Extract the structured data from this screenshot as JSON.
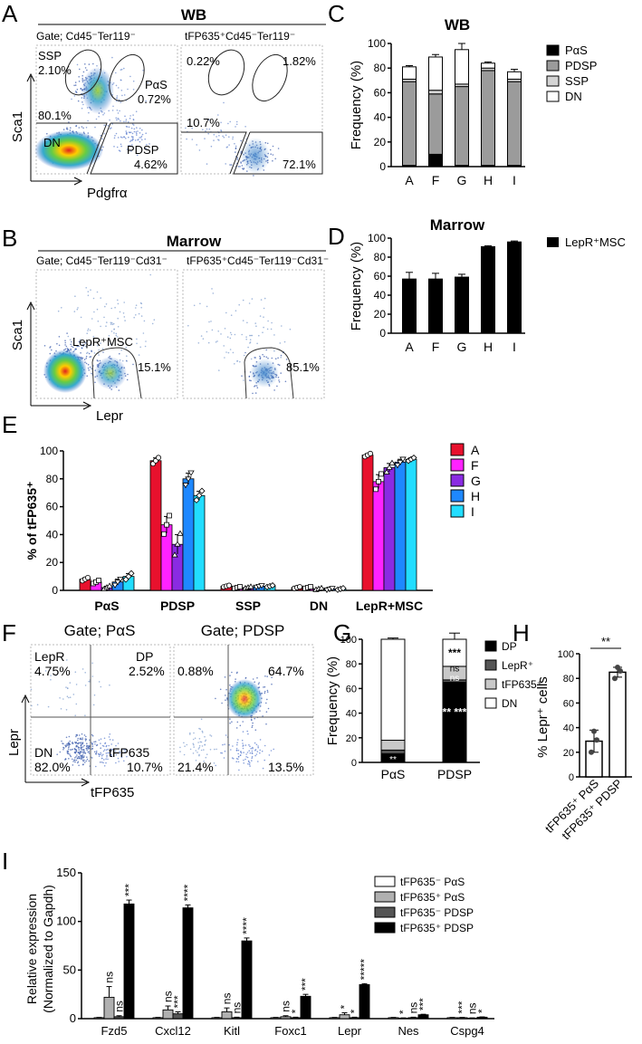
{
  "panel_letters": [
    "A",
    "B",
    "C",
    "D",
    "E",
    "F",
    "G",
    "H",
    "I"
  ],
  "panelA": {
    "title": "WB",
    "gate_left": "Gate; Cd45⁻Ter119⁻",
    "gate_right": "tFP635⁺Cd45⁻Ter119⁻",
    "x_axis": "Pdgfrα",
    "y_axis": "Sca1",
    "left": {
      "ssp_label": "SSP",
      "ssp_pct": "2.10%",
      "pas_label": "PαS",
      "pas_pct": "0.72%",
      "dn_pct": "80.1%",
      "dn_label": "DN",
      "pdsp_label": "PDSP",
      "pdsp_pct": "4.62%"
    },
    "right": {
      "ssp_pct": "0.22%",
      "pas_pct": "1.82%",
      "dn_pct": "10.7%",
      "pdsp_pct": "72.1%"
    }
  },
  "panelB": {
    "title": "Marrow",
    "gate_left": "Gate; Cd45⁻Ter119⁻Cd31⁻",
    "gate_right": "tFP635⁺Cd45⁻Ter119⁻Cd31⁻",
    "x_axis": "Lepr",
    "y_axis": "Sca1",
    "gate_label": "LepR⁺MSC",
    "left_pct": "15.1%",
    "right_pct": "85.1%"
  },
  "panelF": {
    "gate_left": "Gate; PαS",
    "gate_right": "Gate; PDSP",
    "x_axis": "tFP635",
    "y_axis": "Lepr",
    "left": {
      "lepr_label": "LepR",
      "lepr_pct": "4.75%",
      "dp_label": "DP",
      "dp_pct": "2.52%",
      "dn_label": "DN",
      "dn_pct": "82.0%",
      "tfp_label": "tFP635",
      "tfp_pct": "10.7%"
    },
    "right": {
      "lepr_pct": "0.88%",
      "dp_pct": "64.7%",
      "dn_pct": "21.4%",
      "tfp_pct": "13.5%"
    }
  },
  "chart_data": [
    {
      "id": "C",
      "type": "bar",
      "stacked": true,
      "title": "WB",
      "ylabel": "Frequency (%)",
      "ylim": [
        0,
        100
      ],
      "yticks": [
        0,
        20,
        40,
        60,
        80,
        100
      ],
      "categories": [
        "A",
        "F",
        "G",
        "H",
        "I"
      ],
      "series": [
        {
          "name": "PαS",
          "color": "#000000",
          "values": [
            1,
            10,
            1,
            1,
            1
          ],
          "err": [
            0.5,
            1.5,
            0.5,
            0.5,
            0.5
          ]
        },
        {
          "name": "PDSP",
          "color": "#9b9b9b",
          "values": [
            68,
            49,
            64,
            77,
            68
          ],
          "err": [
            1,
            2,
            3,
            1,
            1
          ]
        },
        {
          "name": "SSP",
          "color": "#d4d4d4",
          "values": [
            2,
            3,
            2,
            2,
            2
          ],
          "err": [
            0.5,
            1,
            0.5,
            0.5,
            0.5
          ]
        },
        {
          "name": "DN",
          "color": "#ffffff",
          "values": [
            10,
            27,
            28,
            4,
            6
          ],
          "err": [
            1,
            2,
            5,
            1,
            2
          ]
        }
      ]
    },
    {
      "id": "D",
      "type": "bar",
      "title": "Marrow",
      "ylabel": "Frequency (%)",
      "ylim": [
        0,
        100
      ],
      "yticks": [
        0,
        20,
        40,
        60,
        80,
        100
      ],
      "categories": [
        "A",
        "F",
        "G",
        "H",
        "I"
      ],
      "series": [
        {
          "name": "LepR⁺MSC",
          "color": "#000000",
          "values": [
            57,
            57,
            59,
            91,
            96
          ],
          "err": [
            7,
            6,
            3,
            1,
            1
          ]
        }
      ]
    },
    {
      "id": "E",
      "type": "bar",
      "grouped": true,
      "ylabel": "% of tFP635⁺",
      "ylim": [
        0,
        100
      ],
      "yticks": [
        0,
        20,
        40,
        60,
        80,
        100
      ],
      "categories": [
        "PαS",
        "PDSP",
        "SSP",
        "DN",
        "LepR+MSC"
      ],
      "series": [
        {
          "name": "A",
          "color": "#e8112d",
          "values": [
            8,
            93,
            3,
            2,
            97
          ],
          "err": [
            1,
            2,
            0.5,
            0.5,
            1
          ]
        },
        {
          "name": "F",
          "color": "#ff22ff",
          "values": [
            6,
            47,
            2,
            2,
            78
          ],
          "err": [
            1,
            6,
            0.5,
            0.5,
            5
          ]
        },
        {
          "name": "G",
          "color": "#8a2be2",
          "values": [
            2,
            33,
            2,
            1,
            88
          ],
          "err": [
            1,
            7,
            0.5,
            0.5,
            3
          ]
        },
        {
          "name": "H",
          "color": "#1e88ff",
          "values": [
            6,
            80,
            3,
            1,
            92
          ],
          "err": [
            2,
            4,
            0.5,
            0.5,
            2
          ]
        },
        {
          "name": "I",
          "color": "#22ddff",
          "values": [
            10,
            68,
            3,
            1,
            94
          ],
          "err": [
            2,
            3,
            0.5,
            0.5,
            1
          ]
        }
      ]
    },
    {
      "id": "G",
      "type": "bar",
      "stacked": true,
      "ylabel": "Frequency (%)",
      "ylim": [
        0,
        100
      ],
      "yticks": [
        0,
        20,
        40,
        60,
        80,
        100
      ],
      "categories": [
        "PαS",
        "PDSP"
      ],
      "series": [
        {
          "name": "DP",
          "color": "#000000",
          "values": [
            7,
            65
          ],
          "err": [
            1,
            2
          ]
        },
        {
          "name": "LepR⁺",
          "color": "#555555",
          "values": [
            3,
            2
          ],
          "err": [
            1,
            1
          ]
        },
        {
          "name": "tFP635⁺",
          "color": "#c8c8c8",
          "values": [
            8,
            11
          ],
          "err": [
            2,
            2
          ]
        },
        {
          "name": "DN",
          "color": "#ffffff",
          "values": [
            82,
            22
          ],
          "err": [
            1,
            5
          ]
        }
      ],
      "annotations": {
        "PDSP_DP": "** ***",
        "PDSP_LepR": "ns",
        "PDSP_tFP": "ns",
        "PDSP_DN": "***",
        "PaS_DP": "**"
      }
    },
    {
      "id": "H",
      "type": "bar",
      "ylabel": "% Lepr⁺ cells",
      "ylim": [
        0,
        100
      ],
      "yticks": [
        0,
        20,
        40,
        60,
        80,
        100
      ],
      "categories": [
        "tFP635⁺ PαS",
        "tFP635⁺ PDSP"
      ],
      "values": [
        29,
        85
      ],
      "err": [
        9,
        4
      ],
      "points": [
        [
          20,
          37,
          30
        ],
        [
          80,
          89,
          86
        ]
      ],
      "significance": "**"
    },
    {
      "id": "I",
      "type": "bar",
      "grouped": true,
      "ylabel": "Relative expression",
      "ylabel2": "(Normalized to Gapdh)",
      "ylim": [
        0,
        150
      ],
      "yticks": [
        0,
        50,
        100,
        150
      ],
      "categories": [
        "Fzd5",
        "Cxcl12",
        "Kitl",
        "Foxc1",
        "Lepr",
        "Nes",
        "Cspg4"
      ],
      "series": [
        {
          "name": "tFP635⁻ PαS",
          "color": "#ffffff",
          "values": [
            1,
            1,
            1,
            1,
            1,
            1,
            1
          ],
          "err": [
            0.3,
            0.3,
            0.3,
            0.3,
            0.3,
            0.3,
            0.3
          ]
        },
        {
          "name": "tFP635⁺ PαS",
          "color": "#b0b0b0",
          "values": [
            22,
            9,
            7,
            2,
            4,
            0.5,
            1
          ],
          "err": [
            11,
            4,
            4,
            1,
            2,
            0.3,
            0.3
          ]
        },
        {
          "name": "tFP635⁻ PDSP",
          "color": "#555555",
          "values": [
            2,
            5,
            1,
            1,
            1,
            1,
            0.5
          ],
          "err": [
            1,
            2,
            0.5,
            0.5,
            0.5,
            0.5,
            0.3
          ]
        },
        {
          "name": "tFP635⁺ PDSP",
          "color": "#000000",
          "values": [
            118,
            114,
            80,
            23,
            35,
            4,
            1.5
          ],
          "err": [
            4,
            3,
            3,
            2,
            1,
            0.5,
            0.3
          ]
        }
      ],
      "sig": [
        [
          "ns",
          "ns",
          "***"
        ],
        [
          "ns",
          "***",
          "****"
        ],
        [
          "ns",
          "ns",
          "****"
        ],
        [
          "ns",
          "*",
          "***"
        ],
        [
          "*",
          "*",
          "*****"
        ],
        [
          "*",
          "ns",
          "***"
        ],
        [
          "***",
          "ns",
          "*"
        ]
      ]
    }
  ]
}
